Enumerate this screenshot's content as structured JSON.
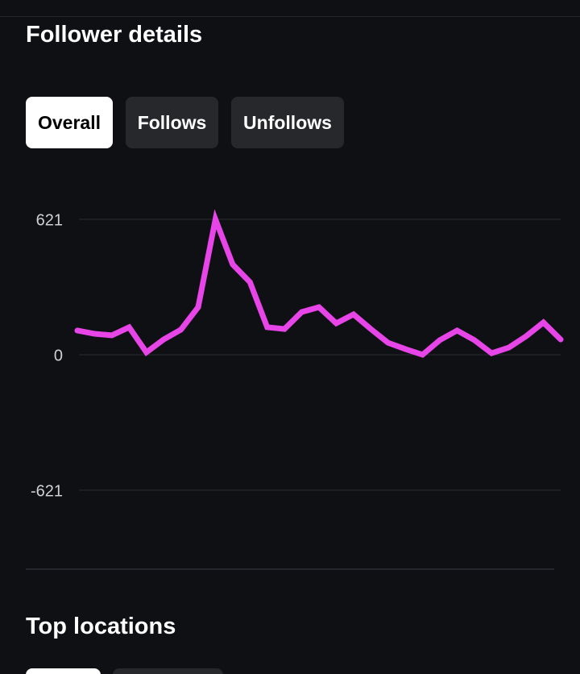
{
  "header": {
    "title": "Follower details"
  },
  "tabs": {
    "items": [
      "Overall",
      "Follows",
      "Unfollows"
    ],
    "active": 0
  },
  "chart_data": {
    "type": "line",
    "color": "#e845e8",
    "values": [
      111,
      96,
      89,
      126,
      11,
      70,
      115,
      218,
      621,
      414,
      333,
      126,
      118,
      196,
      218,
      144,
      185,
      118,
      55,
      26,
      0,
      67,
      111,
      67,
      7,
      33,
      85,
      148,
      70
    ],
    "ylim": [
      -621,
      621
    ],
    "yticks": [
      621,
      0,
      -621
    ],
    "grid": true
  },
  "section": {
    "title": "Top locations"
  }
}
